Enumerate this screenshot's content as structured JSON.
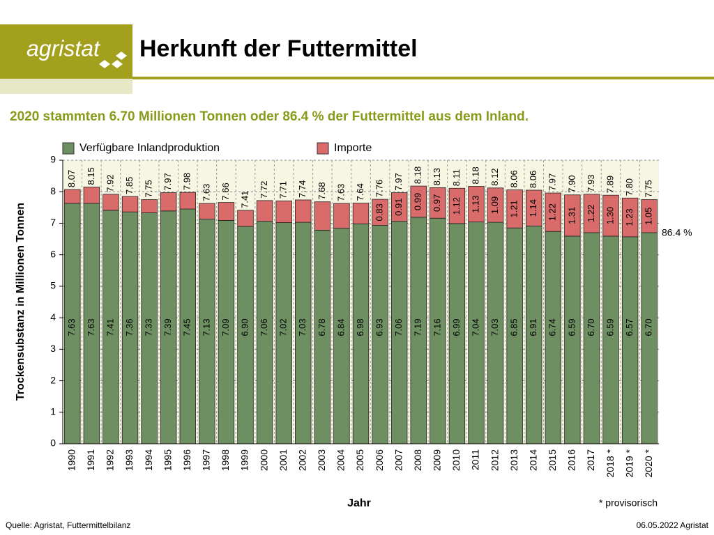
{
  "header": {
    "logo": "agristat",
    "title": "Herkunft der Futtermittel"
  },
  "footer": {
    "source": "Quelle: Agristat, Futtermittelbilanz",
    "date": "06.05.2022 Agristat"
  },
  "chart_data": {
    "type": "stacked_bar",
    "subtitle": "2020 stammten 6.70 Millionen Tonnen oder 86.4 % der Futtermittel aus dem Inland.",
    "y_label": "Trockensubstanz in Millionen Tonnen",
    "x_label": "Jahr",
    "note": "* provisorisch",
    "annotation": "86.4 %",
    "categories": [
      "1990",
      "1991",
      "1992",
      "1993",
      "1994",
      "1995",
      "1996",
      "1997",
      "1998",
      "1999",
      "2000",
      "2001",
      "2002",
      "2003",
      "2004",
      "2005",
      "2006",
      "2007",
      "2008",
      "2009",
      "2010",
      "2011",
      "2012",
      "2013",
      "2014",
      "2015",
      "2016",
      "2017",
      "2018 *",
      "2019 *",
      "2020 *"
    ],
    "series": [
      {
        "name": "Verfügbare Inlandproduktion",
        "color": "#6e8f62",
        "values": [
          7.63,
          7.63,
          7.41,
          7.36,
          7.33,
          7.39,
          7.45,
          7.13,
          7.09,
          6.9,
          7.06,
          7.02,
          7.03,
          6.78,
          6.84,
          6.98,
          6.93,
          7.06,
          7.19,
          7.16,
          6.99,
          7.04,
          7.03,
          6.85,
          6.91,
          6.74,
          6.59,
          6.7,
          6.59,
          6.57,
          6.7
        ],
        "value_labels": [
          "7.63",
          "7.63",
          "7.41",
          "7.36",
          "7.33",
          "7.39",
          "7.45",
          "7.13",
          "7.09",
          "6.90",
          "7.06",
          "7.02",
          "7.03",
          "6.78",
          "6.84",
          "6.98",
          "6.93",
          "7.06",
          "7.19",
          "7.16",
          "6.99",
          "7.04",
          "7.03",
          "6.85",
          "6.91",
          "6.74",
          "6.59",
          "6.70",
          "6.59",
          "6.57",
          "6.70"
        ]
      },
      {
        "name": "Importe",
        "color": "#d96b6b",
        "values": [
          0.44,
          0.52,
          0.51,
          0.49,
          0.42,
          0.58,
          0.53,
          0.5,
          0.57,
          0.51,
          0.66,
          0.69,
          0.71,
          0.9,
          0.79,
          0.66,
          0.83,
          0.91,
          0.99,
          0.97,
          1.12,
          1.13,
          1.09,
          1.21,
          1.14,
          1.22,
          1.31,
          1.22,
          1.3,
          1.23,
          1.05
        ],
        "value_labels": [
          null,
          null,
          null,
          null,
          null,
          null,
          null,
          null,
          null,
          null,
          null,
          null,
          null,
          null,
          null,
          null,
          "0.83",
          "0.91",
          "0.99",
          "0.97",
          "1.12",
          "1.13",
          "1.09",
          "1.21",
          "1.14",
          "1.22",
          "1.31",
          "1.22",
          "1.30",
          "1.23",
          "1.05"
        ]
      }
    ],
    "total_labels": [
      "8.07",
      "8.15",
      "7.92",
      "7.85",
      "7.75",
      "7.97",
      "7.98",
      "7.63",
      "7.66",
      "7.41",
      "7.72",
      "7.71",
      "7.74",
      "7.68",
      "7.63",
      "7.64",
      "7.76",
      "7.97",
      "8.18",
      "8.13",
      "8.11",
      "8.18",
      "8.12",
      "8.06",
      "8.06",
      "7.97",
      "7.90",
      "7.93",
      "7.89",
      "7.80",
      "7.75"
    ],
    "ylim": [
      0,
      9
    ],
    "yticks": [
      0,
      1,
      2,
      3,
      4,
      5,
      6,
      7,
      8,
      9
    ],
    "grid": true
  }
}
